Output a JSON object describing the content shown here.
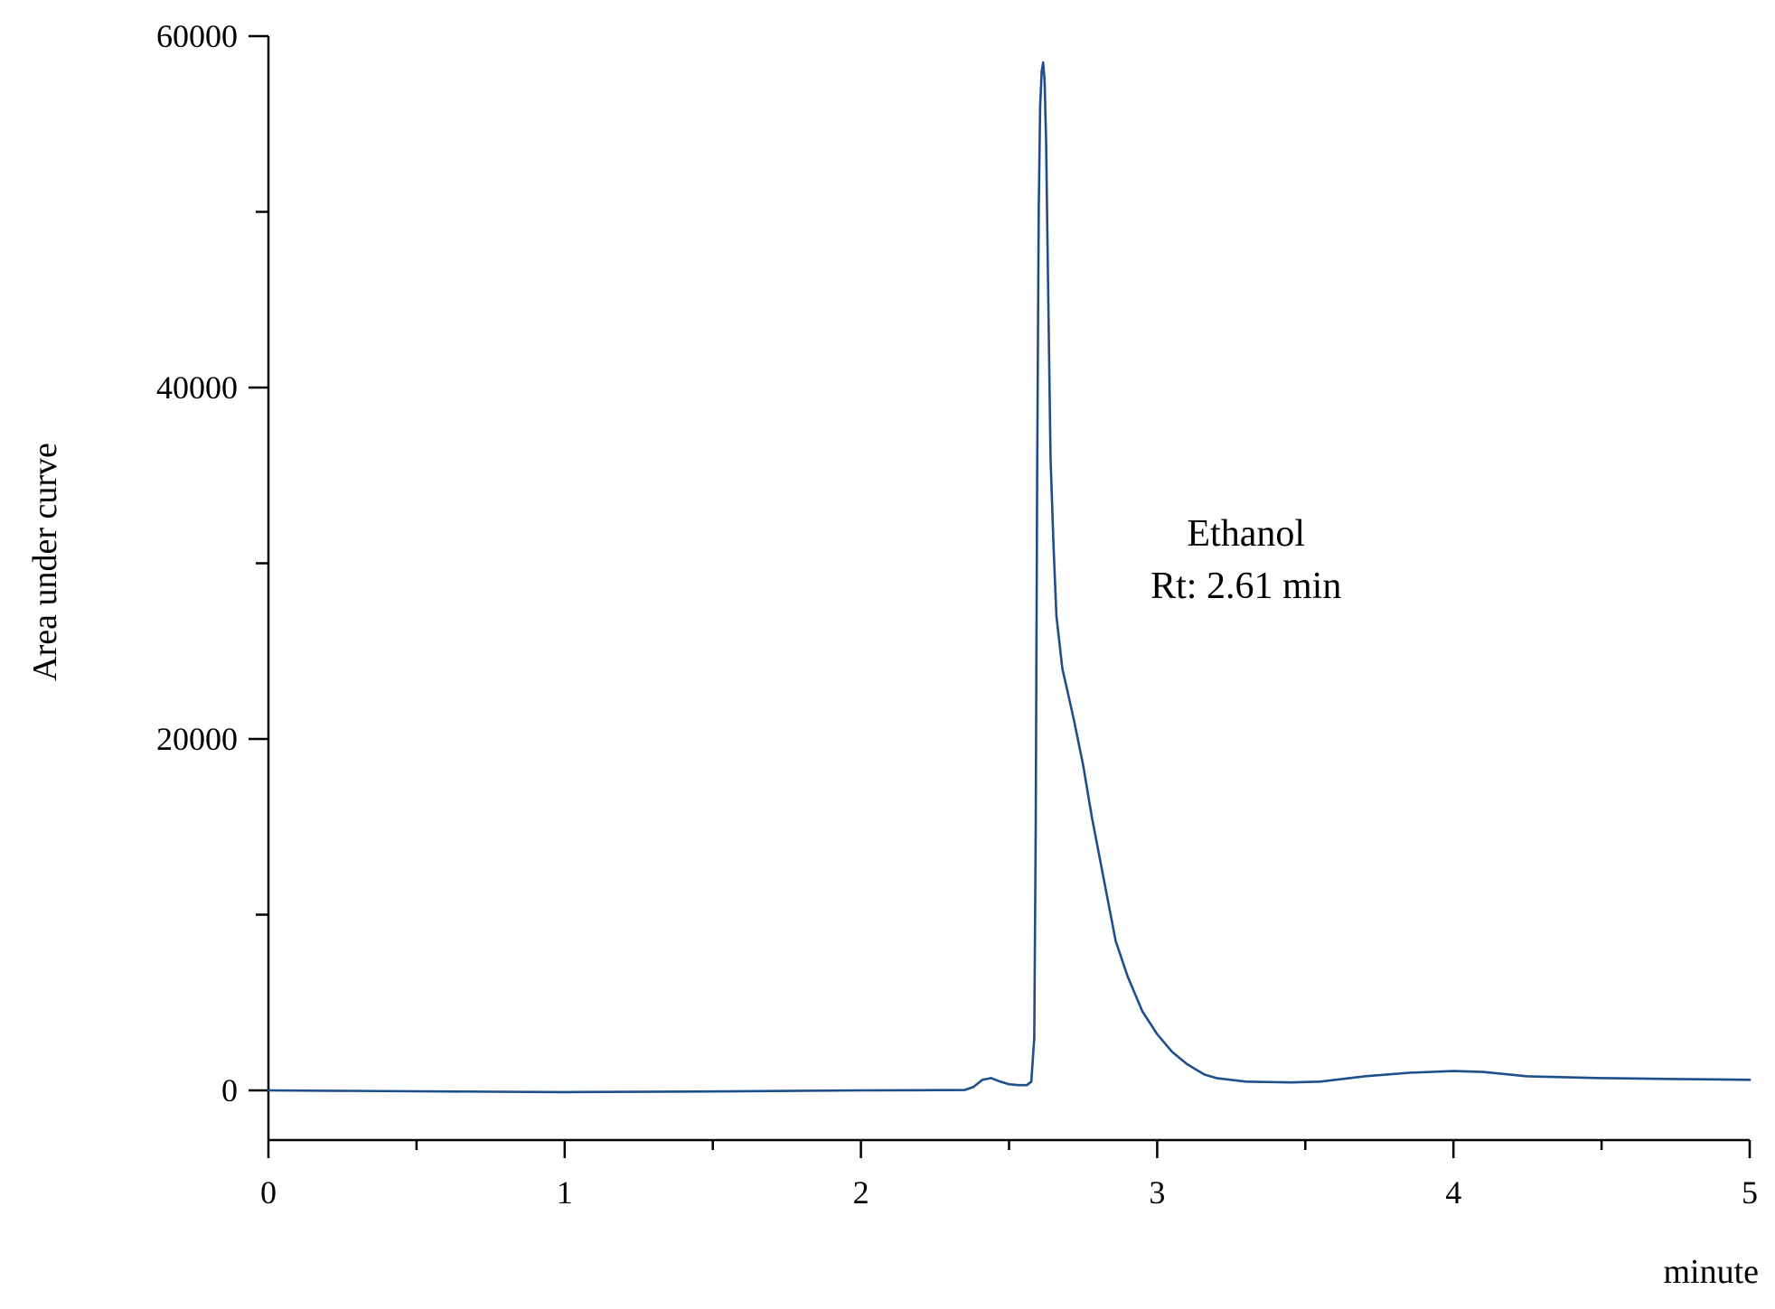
{
  "chart_data": {
    "type": "line",
    "title": "",
    "xlabel": "minute",
    "ylabel": "Area under curve",
    "xlim": [
      0,
      5
    ],
    "ylim": [
      -3000,
      60000
    ],
    "x_ticks_major": [
      0,
      1,
      2,
      3,
      4,
      5
    ],
    "x_ticks_minor": [
      0.5,
      1.5,
      2.5,
      3.5,
      4.5
    ],
    "y_ticks_labeled": [
      0,
      20000,
      40000,
      60000
    ],
    "y_ticks_minor": [
      10000,
      30000,
      50000
    ],
    "grid": false,
    "legend": "none",
    "line_color": "#1f4e8c",
    "annotations": [
      {
        "line1": "Ethanol",
        "line2": "Rt: 2.61 min",
        "x": 3.3,
        "y": 31000
      }
    ],
    "series": [
      {
        "x": [
          0,
          0.5,
          1.0,
          1.5,
          2.0,
          2.35,
          2.38,
          2.41,
          2.44,
          2.47,
          2.5,
          2.53,
          2.56,
          2.575,
          2.585,
          2.59,
          2.595,
          2.6,
          2.605,
          2.61,
          2.615,
          2.62,
          2.625,
          2.63,
          2.64,
          2.65,
          2.66,
          2.68,
          2.7,
          2.72,
          2.75,
          2.78,
          2.82,
          2.86,
          2.9,
          2.95,
          3.0,
          3.05,
          3.1,
          3.13,
          3.16,
          3.2,
          3.3,
          3.45,
          3.55,
          3.7,
          3.85,
          4.0,
          4.1,
          4.25,
          4.5,
          4.75,
          5.0
        ],
        "y": [
          0,
          -50,
          -100,
          -60,
          0,
          20,
          200,
          600,
          700,
          500,
          350,
          300,
          300,
          500,
          3000,
          15000,
          35000,
          50000,
          56000,
          58000,
          58500,
          57500,
          54000,
          48000,
          36000,
          31000,
          27000,
          24000,
          22500,
          21000,
          18500,
          15500,
          12000,
          8500,
          6500,
          4500,
          3200,
          2200,
          1500,
          1200,
          900,
          700,
          500,
          450,
          500,
          800,
          1000,
          1100,
          1050,
          800,
          700,
          650,
          600
        ]
      }
    ]
  }
}
